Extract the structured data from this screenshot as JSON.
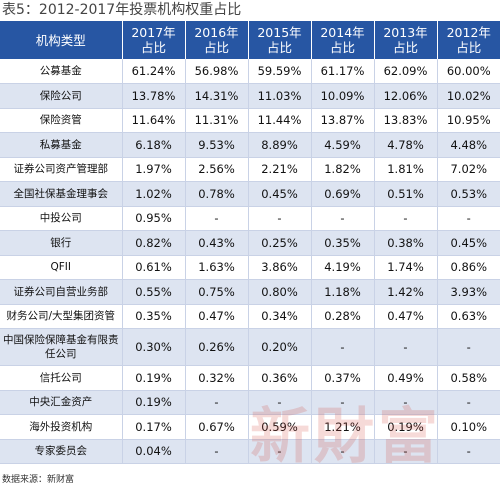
{
  "title": "表5：2012-2017年投票机构权重占比",
  "headers": {
    "category": "机构类型",
    "years": [
      {
        "year": "2017年",
        "sub": "占比"
      },
      {
        "year": "2016年",
        "sub": "占比"
      },
      {
        "year": "2015年",
        "sub": "占比"
      },
      {
        "year": "2014年",
        "sub": "占比"
      },
      {
        "year": "2013年",
        "sub": "占比"
      },
      {
        "year": "2012年",
        "sub": "占比"
      }
    ]
  },
  "rows": [
    {
      "name": "公募基金",
      "values": [
        "61.24%",
        "56.98%",
        "59.59%",
        "61.17%",
        "62.09%",
        "60.00%"
      ]
    },
    {
      "name": "保险公司",
      "values": [
        "13.78%",
        "14.31%",
        "11.03%",
        "10.09%",
        "12.06%",
        "10.02%"
      ]
    },
    {
      "name": "保险资管",
      "values": [
        "11.64%",
        "11.31%",
        "11.44%",
        "13.87%",
        "13.83%",
        "10.95%"
      ]
    },
    {
      "name": "私募基金",
      "values": [
        "6.18%",
        "9.53%",
        "8.89%",
        "4.59%",
        "4.78%",
        "4.48%"
      ]
    },
    {
      "name": "证券公司资产管理部",
      "values": [
        "1.97%",
        "2.56%",
        "2.21%",
        "1.82%",
        "1.81%",
        "7.02%"
      ]
    },
    {
      "name": "全国社保基金理事会",
      "values": [
        "1.02%",
        "0.78%",
        "0.45%",
        "0.69%",
        "0.51%",
        "0.53%"
      ]
    },
    {
      "name": "中投公司",
      "values": [
        "0.95%",
        "-",
        "-",
        "-",
        "-",
        "-"
      ]
    },
    {
      "name": "银行",
      "values": [
        "0.82%",
        "0.43%",
        "0.25%",
        "0.35%",
        "0.38%",
        "0.45%"
      ]
    },
    {
      "name": "QFII",
      "values": [
        "0.61%",
        "1.63%",
        "3.86%",
        "4.19%",
        "1.74%",
        "0.86%"
      ]
    },
    {
      "name": "证券公司自营业务部",
      "values": [
        "0.55%",
        "0.75%",
        "0.80%",
        "1.18%",
        "1.42%",
        "3.93%"
      ]
    },
    {
      "name": "财务公司/大型集团资管",
      "values": [
        "0.35%",
        "0.47%",
        "0.34%",
        "0.28%",
        "0.47%",
        "0.63%"
      ]
    },
    {
      "name": "中国保险保障基金有限责任公司",
      "values": [
        "0.30%",
        "0.26%",
        "0.20%",
        "-",
        "-",
        "-"
      ],
      "tall": true
    },
    {
      "name": "信托公司",
      "values": [
        "0.19%",
        "0.32%",
        "0.36%",
        "0.37%",
        "0.49%",
        "0.58%"
      ]
    },
    {
      "name": "中央汇金资产",
      "values": [
        "0.19%",
        "-",
        "-",
        "-",
        "-",
        "-"
      ]
    },
    {
      "name": "海外投资机构",
      "values": [
        "0.17%",
        "0.67%",
        "0.59%",
        "1.21%",
        "0.19%",
        "0.10%"
      ]
    },
    {
      "name": "专家委员会",
      "values": [
        "0.04%",
        "-",
        "-",
        "-",
        "-",
        "-"
      ]
    }
  ],
  "source": "数据来源：新财富",
  "watermark": "新財富"
}
